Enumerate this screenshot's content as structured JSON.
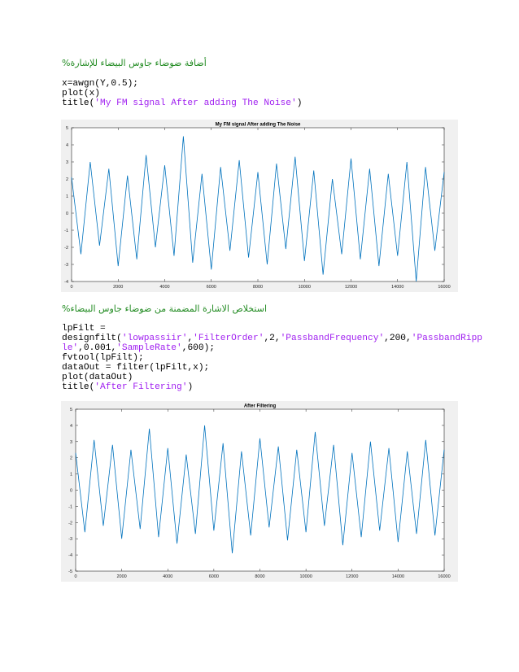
{
  "comments": [
    "أضافة ضوضاء جاوس البيضاء للإشارة%",
    "استخلاص الاشارة المضمنة من ضوضاء جاوس البيضاء%"
  ],
  "code_blocks": [
    [
      [
        {
          "t": "x=awgn(Y,0.5);"
        }
      ],
      [
        {
          "t": "plot(x)"
        }
      ],
      [
        {
          "t": "title("
        },
        {
          "t": "'My FM signal After adding The Noise'",
          "color": "#a020f0"
        },
        {
          "t": ")"
        }
      ]
    ],
    [
      [
        {
          "t": "lpFilt ="
        }
      ],
      [
        {
          "t": "designfilt("
        },
        {
          "t": "'lowpassiir'",
          "color": "#a020f0"
        },
        {
          "t": ","
        },
        {
          "t": "'FilterOrder'",
          "color": "#a020f0"
        },
        {
          "t": ",2,"
        },
        {
          "t": "'PassbandFrequency'",
          "color": "#a020f0"
        },
        {
          "t": ",200,"
        },
        {
          "t": "'PassbandRipp",
          "color": "#a020f0"
        }
      ],
      [
        {
          "t": "le'",
          "color": "#a020f0"
        },
        {
          "t": ",0.001,"
        },
        {
          "t": "'SampleRate'",
          "color": "#a020f0"
        },
        {
          "t": ",600);"
        }
      ],
      [
        {
          "t": "fvtool(lpFilt);"
        }
      ],
      [
        {
          "t": "dataOut = filter(lpFilt,x);"
        }
      ],
      [
        {
          "t": "plot(dataOut)"
        }
      ],
      [
        {
          "t": "title("
        },
        {
          "t": "'After Filtering'",
          "color": "#a020f0"
        },
        {
          "t": ")"
        }
      ]
    ]
  ],
  "chart_data": [
    {
      "type": "line",
      "title": "My FM signal After adding The Noise",
      "x": [
        0,
        400,
        800,
        1200,
        1600,
        2000,
        2400,
        2800,
        3200,
        3600,
        4000,
        4400,
        4800,
        5200,
        5600,
        6000,
        6400,
        6800,
        7200,
        7600,
        8000,
        8400,
        8800,
        9200,
        9600,
        10000,
        10400,
        10800,
        11200,
        11600,
        12000,
        12400,
        12800,
        13200,
        13600,
        14000,
        14400,
        14800,
        15200,
        15600,
        16000
      ],
      "series": [
        {
          "color": "#0072bd",
          "values": [
            2.1,
            -2.4,
            3.0,
            -1.9,
            2.6,
            -3.1,
            2.2,
            -2.7,
            3.4,
            -2.0,
            2.8,
            -2.5,
            4.5,
            -2.9,
            2.3,
            -3.3,
            2.7,
            -2.2,
            3.1,
            -2.6,
            2.4,
            -3.0,
            2.9,
            -2.1,
            3.3,
            -2.8,
            2.5,
            -3.6,
            2.0,
            -2.4,
            3.2,
            -2.7,
            2.6,
            -3.1,
            2.3,
            -2.5,
            3.0,
            -4.0,
            2.7,
            -2.2,
            2.4
          ]
        }
      ],
      "xlim": [
        0,
        16000
      ],
      "xticks": [
        0,
        2000,
        4000,
        6000,
        8000,
        10000,
        12000,
        14000,
        16000
      ],
      "ylim": [
        -4,
        5
      ],
      "yticks": [
        -4,
        -3,
        -2,
        -1,
        0,
        1,
        2,
        3,
        4,
        5
      ]
    },
    {
      "type": "line",
      "title": "After Filtering",
      "x": [
        0,
        400,
        800,
        1200,
        1600,
        2000,
        2400,
        2800,
        3200,
        3600,
        4000,
        4400,
        4800,
        5200,
        5600,
        6000,
        6400,
        6800,
        7200,
        7600,
        8000,
        8400,
        8800,
        9200,
        9600,
        10000,
        10400,
        10800,
        11200,
        11600,
        12000,
        12400,
        12800,
        13200,
        13600,
        14000,
        14400,
        14800,
        15200,
        15600,
        16000
      ],
      "series": [
        {
          "color": "#0072bd",
          "values": [
            2.3,
            -2.6,
            3.1,
            -2.2,
            2.8,
            -3.0,
            2.5,
            -2.4,
            3.8,
            -2.9,
            2.6,
            -3.3,
            2.2,
            -2.7,
            4.0,
            -2.5,
            2.9,
            -3.9,
            2.4,
            -2.8,
            3.2,
            -2.3,
            2.7,
            -3.1,
            2.5,
            -2.6,
            3.6,
            -2.2,
            2.8,
            -3.4,
            2.3,
            -2.9,
            3.0,
            -2.5,
            2.6,
            -3.2,
            2.4,
            -2.7,
            3.1,
            -2.8,
            2.5
          ]
        }
      ],
      "xlim": [
        0,
        16000
      ],
      "xticks": [
        0,
        2000,
        4000,
        6000,
        8000,
        10000,
        12000,
        14000,
        16000
      ],
      "ylim": [
        -5,
        5
      ],
      "yticks": [
        -5,
        -4,
        -3,
        -2,
        -1,
        0,
        1,
        2,
        3,
        4,
        5
      ]
    }
  ]
}
